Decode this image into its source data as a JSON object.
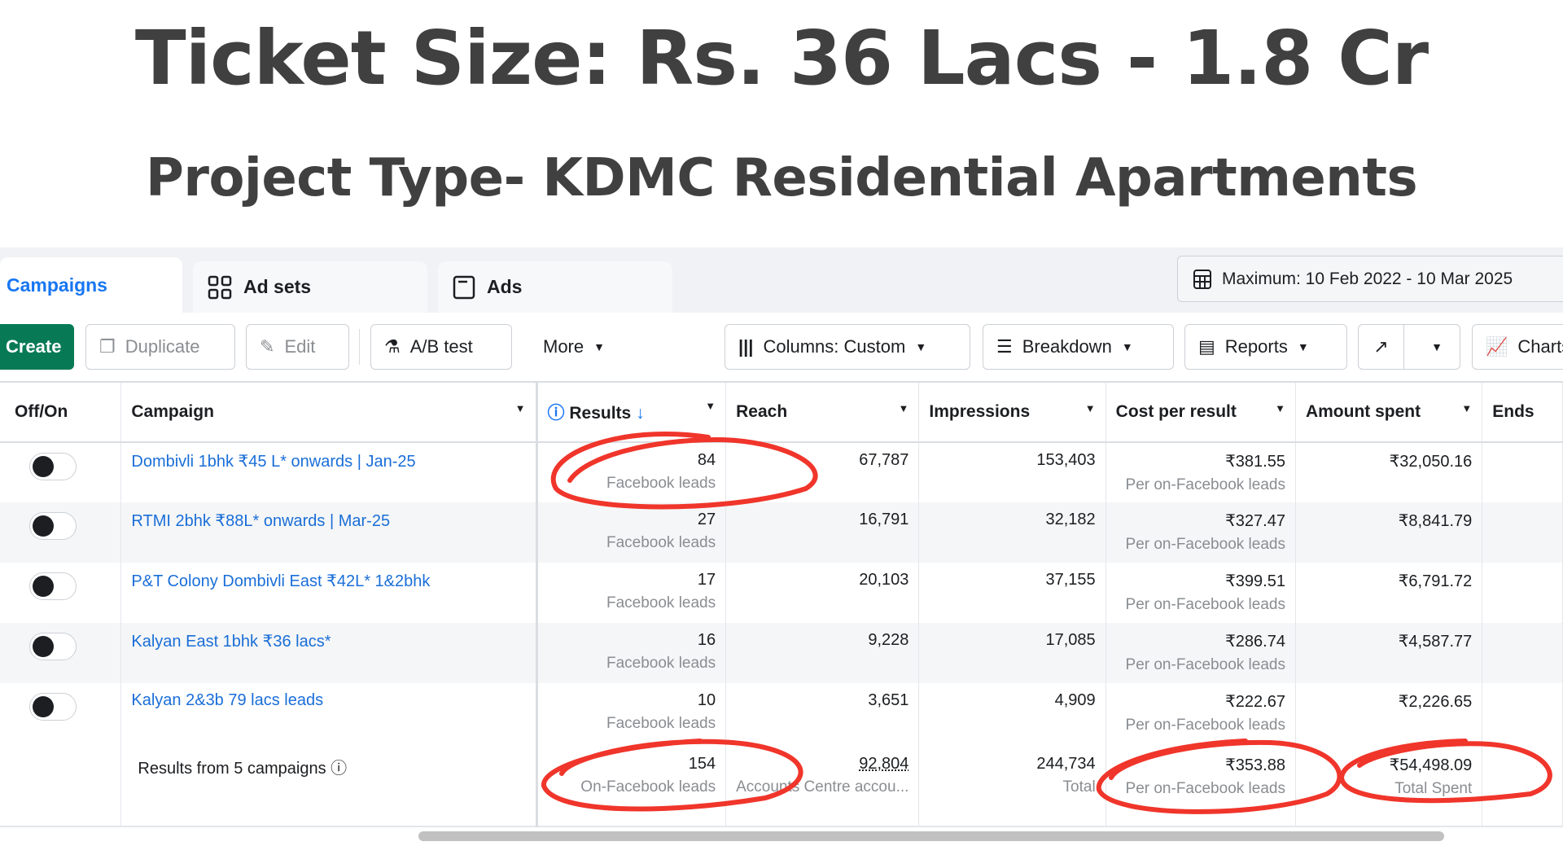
{
  "title": "Ticket Size: Rs. 36 Lacs - 1.8 Cr",
  "subtitle": "Project Type- KDMC Residential Apartments",
  "tabs": [
    {
      "label": "Campaigns",
      "icon": "flag-icon"
    },
    {
      "label": "Ad sets",
      "icon": "grid-icon"
    },
    {
      "label": "Ads",
      "icon": "window-icon"
    }
  ],
  "date_range": "Maximum: 10 Feb 2022 - 10 Mar 2025",
  "toolbar": {
    "create": "Create",
    "duplicate": "Duplicate",
    "edit": "Edit",
    "ab_test": "A/B test",
    "more": "More",
    "columns": "Columns: Custom",
    "breakdown": "Breakdown",
    "reports": "Reports",
    "charts": "Charts"
  },
  "columns": [
    "Off/On",
    "Campaign",
    "Results",
    "Reach",
    "Impressions",
    "Cost per result",
    "Amount spent",
    "Ends"
  ],
  "rows": [
    {
      "campaign": "Dombivli 1bhk ₹45 L* onwards | Jan-25",
      "results": "84",
      "results_sub": "Facebook leads",
      "reach": "67,787",
      "impressions": "153,403",
      "cpr": "₹381.55",
      "cpr_sub": "Per on-Facebook leads",
      "spent": "₹32,050.16"
    },
    {
      "campaign": "RTMI 2bhk ₹88L* onwards | Mar-25",
      "results": "27",
      "results_sub": "Facebook leads",
      "reach": "16,791",
      "impressions": "32,182",
      "cpr": "₹327.47",
      "cpr_sub": "Per on-Facebook leads",
      "spent": "₹8,841.79"
    },
    {
      "campaign": "P&T Colony Dombivli East ₹42L* 1&2bhk",
      "results": "17",
      "results_sub": "Facebook leads",
      "reach": "20,103",
      "impressions": "37,155",
      "cpr": "₹399.51",
      "cpr_sub": "Per on-Facebook leads",
      "spent": "₹6,791.72"
    },
    {
      "campaign": "Kalyan East 1bhk ₹36 lacs*",
      "results": "16",
      "results_sub": "Facebook leads",
      "reach": "9,228",
      "impressions": "17,085",
      "cpr": "₹286.74",
      "cpr_sub": "Per on-Facebook leads",
      "spent": "₹4,587.77"
    },
    {
      "campaign": "Kalyan 2&3b 79 lacs leads",
      "results": "10",
      "results_sub": "Facebook leads",
      "reach": "3,651",
      "impressions": "4,909",
      "cpr": "₹222.67",
      "cpr_sub": "Per on-Facebook leads",
      "spent": "₹2,226.65"
    }
  ],
  "summary": {
    "label": "Results from 5 campaigns",
    "results": "154",
    "results_sub": "On-Facebook leads",
    "reach": "92,804",
    "reach_sub": "Accounts Centre accou...",
    "impressions": "244,734",
    "impressions_sub": "Total",
    "cpr": "₹353.88",
    "cpr_sub": "Per on-Facebook leads",
    "spent": "₹54,498.09",
    "spent_sub": "Total Spent"
  },
  "colors": {
    "accent": "#1877f2",
    "create": "#077a55",
    "annotation": "#f0352b"
  }
}
